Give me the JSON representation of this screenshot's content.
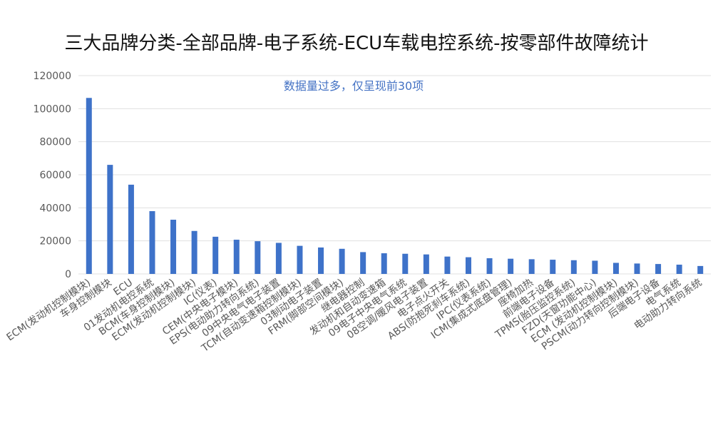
{
  "chart_data": {
    "type": "bar",
    "title": "三大品牌分类-全部品牌-电子系统-ECU车载电控系统-按零部件故障统计",
    "note": "数据量过多，仅呈现前30项",
    "xlabel": "",
    "ylabel": "",
    "ylim": [
      0,
      120000
    ],
    "yticks": [
      0,
      20000,
      40000,
      60000,
      80000,
      100000,
      120000
    ],
    "grid": true,
    "legend": "none",
    "colors": {
      "bar": "#3e72c9",
      "grid": "#e0e0e0",
      "axis_text": "#595959",
      "note": "#4472c4"
    },
    "categories": [
      "ECM(发动机控制模块)",
      "车身控制模块",
      "ECU",
      "01发动机电控系统",
      "BCM(车身控制模块)",
      "ECM(发动机控制模块)",
      "IC(仪表)",
      "CEM(中央电子模块)",
      "EPS(电动助力转向系统)",
      "09中央电气电子装置",
      "TCM(自动变速箱控制模块)",
      "03制动电子装置",
      "FRM(脚部空间模块)",
      "继电器控制",
      "发动机和自动变速箱",
      "09电子中央电气系统",
      "08空调/暖风电子装置",
      "电子点火开关",
      "ABS(防抱死刹车系统)",
      "IPC(仪表系统)",
      "ICM(集成式底盘管理)",
      "座椅加热",
      "前端电子设备",
      "TPMS(胎压监控系统)",
      "FZD(天窗功能中心)",
      "ECM (发动机控制模块)",
      "PSCM(动力转向控制模块)",
      "后端电子设备",
      "电气系统",
      "电动助力转向系统"
    ],
    "values": [
      106500,
      66000,
      54000,
      38000,
      32800,
      26000,
      22500,
      20700,
      19800,
      18800,
      17000,
      16000,
      15200,
      13200,
      12500,
      12200,
      11800,
      10500,
      10100,
      9500,
      9200,
      8900,
      8600,
      8300,
      8000,
      6700,
      6300,
      6000,
      5600,
      4800
    ]
  }
}
